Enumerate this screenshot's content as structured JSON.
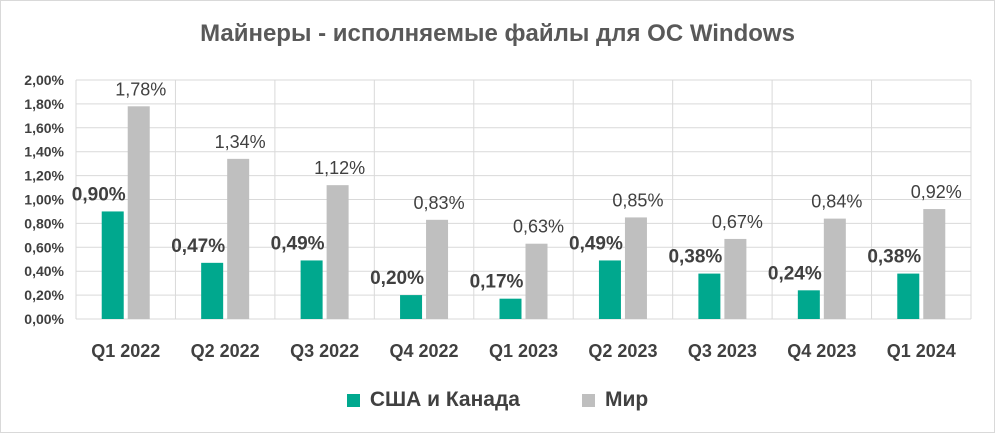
{
  "colors": {
    "usa_canada": "#00a88e",
    "world": "#bfbfbf",
    "grid": "#d9d9d9",
    "text": "#404040"
  },
  "chart_data": {
    "type": "bar",
    "title": "Майнеры - исполняемые файлы для ОС Windows",
    "categories": [
      "Q1 2022",
      "Q2 2022",
      "Q3 2022",
      "Q4 2022",
      "Q1 2023",
      "Q2 2023",
      "Q3 2023",
      "Q4 2023",
      "Q1 2024"
    ],
    "series": [
      {
        "name": "США и Канада",
        "values": [
          0.9,
          0.47,
          0.49,
          0.2,
          0.17,
          0.49,
          0.38,
          0.24,
          0.38
        ],
        "labels": [
          "0,90%",
          "0,47%",
          "0,49%",
          "0,20%",
          "0,17%",
          "0,49%",
          "0,38%",
          "0,24%",
          "0,38%"
        ]
      },
      {
        "name": "Мир",
        "values": [
          1.78,
          1.34,
          1.12,
          0.83,
          0.63,
          0.85,
          0.67,
          0.84,
          0.92
        ],
        "labels": [
          "1,78%",
          "1,34%",
          "1,12%",
          "0,83%",
          "0,63%",
          "0,85%",
          "0,67%",
          "0,84%",
          "0,92%"
        ]
      }
    ],
    "ylim": [
      0,
      2.0
    ],
    "yticks": [
      "0,00%",
      "0,20%",
      "0,40%",
      "0,60%",
      "0,80%",
      "1,00%",
      "1,20%",
      "1,40%",
      "1,60%",
      "1,80%",
      "2,00%"
    ],
    "grid": true,
    "legend": "bottom"
  }
}
